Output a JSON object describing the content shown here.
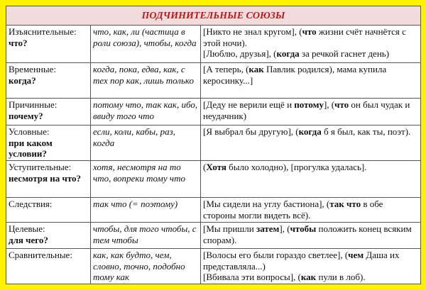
{
  "title": "ПОДЧИНИТЕЛЬНЫЕ СОЮЗЫ",
  "colors": {
    "background": "#fff200",
    "header_bg": "#f2dcdb",
    "title": "#c0141c"
  },
  "rows": [
    {
      "type": "Изъяснительные:",
      "question": "что?",
      "conj": "что, как, ли (частица в роли союза), чтобы, когда",
      "examples": [
        [
          {
            "t": "[Никто не знал кругом], ("
          },
          {
            "t": "что",
            "b": true
          },
          {
            "t": " жизни  счёт начнётся с этой ночи)."
          }
        ],
        [
          {
            "t": "[Люблю, друзья], ("
          },
          {
            "t": "когда",
            "b": true
          },
          {
            "t": " за речкой гаснет день)"
          }
        ]
      ]
    },
    {
      "type": "Временные:",
      "question": "когда?",
      "conj": "когда, пока, едва, как, с тех пор как, лишь только",
      "examples": [
        [
          {
            "t": "[А теперь, ("
          },
          {
            "t": "как",
            "b": true
          },
          {
            "t": " Павлик родился), мама купила керосинку...]"
          }
        ]
      ]
    },
    {
      "type": "Причинные:",
      "question": "почему?",
      "conj": "потому что, так как, ибо, ввиду того что",
      "examples": [
        [
          {
            "t": "[Деду не верили ещё и "
          },
          {
            "t": "потому",
            "b": true
          },
          {
            "t": "], ("
          },
          {
            "t": "что",
            "b": true
          },
          {
            "t": " он был чудак и неудачник)"
          }
        ]
      ]
    },
    {
      "type": "Условные:",
      "question": "при каком условии?",
      "conj": "если, коли, кабы, раз, когда",
      "examples": [
        [
          {
            "t": "[Я выбрал бы другую], ("
          },
          {
            "t": "когда",
            "b": true
          },
          {
            "t": " б я был, как ты, поэт)."
          }
        ]
      ]
    },
    {
      "type": "Уступительные:",
      "question": "несмотря на что?",
      "conj": "хотя, несмотря на то что, вопреки тому что",
      "examples": [
        [
          {
            "t": "("
          },
          {
            "t": "Хотя",
            "b": true
          },
          {
            "t": " было холодно), [прогулка удалась]."
          }
        ]
      ]
    },
    {
      "type": "Следствия:",
      "question": "",
      "conj": "так что (= поэтому)",
      "examples": [
        [
          {
            "t": "[Мы сидели на углу бастиона], ("
          },
          {
            "t": "так что",
            "b": true
          },
          {
            "t": " в обе стороны могли видеть всё)."
          }
        ]
      ]
    },
    {
      "type": "Целевые:",
      "question": "для чего?",
      "conj": "чтобы, для того чтобы, с тем чтобы",
      "examples": [
        [
          {
            "t": "[Мы пришли "
          },
          {
            "t": "затем",
            "b": true
          },
          {
            "t": "], ("
          },
          {
            "t": "чтобы",
            "b": true
          },
          {
            "t": " положить конец всяким спорам)."
          }
        ]
      ]
    },
    {
      "type": "Сравнительные:",
      "question": "",
      "conj": "как, как будто, чем, словно, точно, подобно тому как",
      "examples": [
        [
          {
            "t": "[Волосы его были гораздо светлее], ("
          },
          {
            "t": "чем",
            "b": true
          },
          {
            "t": "  Даша их представляла...)"
          }
        ],
        [
          {
            "t": "[Вбивала эти вопросы], ("
          },
          {
            "t": "как",
            "b": true
          },
          {
            "t": " пули в лоб)."
          }
        ]
      ]
    }
  ]
}
